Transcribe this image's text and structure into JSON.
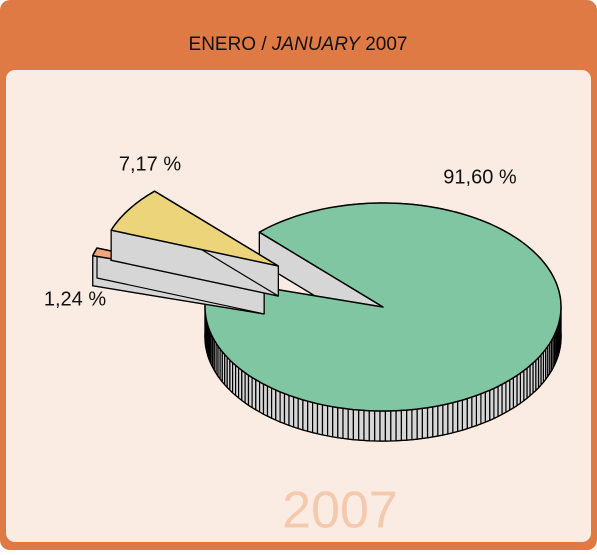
{
  "chart_data": {
    "type": "pie",
    "title": {
      "es": "ENERO /",
      "en": "JANUARY",
      "year": "2007"
    },
    "watermark": "2007",
    "values": [
      91.6,
      1.24,
      7.17
    ],
    "value_labels": [
      "91,60 %",
      "1,24 %",
      "7,17 %"
    ],
    "colors": [
      "#80c6a2",
      "#f2a77a",
      "#ecd47a"
    ]
  }
}
